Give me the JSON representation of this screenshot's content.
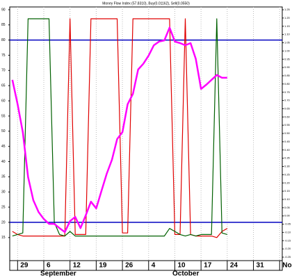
{
  "chart_data": {
    "type": "line",
    "title": "Money Flow Index (57.8310), Buy(0.01162), Sell(0.0550)",
    "categories": [
      null,
      "29",
      null,
      null,
      null,
      null,
      "6",
      null,
      null,
      null,
      null,
      "12",
      null,
      null,
      null,
      null,
      "19",
      null,
      null,
      null,
      null,
      "26",
      null,
      null,
      null,
      null,
      "4",
      null,
      null,
      null,
      null,
      "10",
      null,
      null,
      null,
      null,
      "17",
      null,
      null,
      null,
      null,
      "24",
      null,
      null,
      null,
      null,
      "31",
      null,
      null,
      null,
      null,
      "No"
    ],
    "months": [
      "September",
      "October"
    ],
    "series": [
      {
        "color": "#e00000",
        "values": [
          17,
          16,
          15.5,
          15.5,
          15.5,
          15.5,
          15.5,
          15.5,
          15.5,
          15.5,
          15.5,
          87,
          16,
          16,
          16,
          87,
          87,
          87,
          87,
          87,
          87,
          16.5,
          16.5,
          87,
          87,
          87,
          87,
          87,
          87,
          87,
          87,
          16,
          16,
          87,
          16,
          15.5,
          15.5,
          15.5,
          15.5,
          15,
          17,
          18,
          null,
          null,
          null,
          null,
          null,
          null,
          null,
          null,
          null,
          null
        ]
      },
      {
        "color": "#006000",
        "values": [
          15.5,
          16,
          16.5,
          87,
          87,
          87,
          87,
          87,
          20,
          16,
          15.5,
          17,
          15.5,
          15.5,
          15.5,
          15.5,
          15.5,
          15.5,
          15.5,
          15.5,
          15.5,
          15.5,
          15.5,
          15.5,
          15.5,
          15.5,
          15.5,
          15.5,
          15.5,
          15.5,
          18,
          17,
          16,
          15.5,
          16,
          15.5,
          16,
          16,
          16,
          87,
          16.5,
          16,
          null,
          null,
          null,
          null,
          null,
          null,
          null,
          null,
          null,
          null
        ]
      },
      {
        "color": "#ff00ff",
        "values": [
          66.9,
          58.9,
          49.7,
          34.9,
          27.3,
          23.4,
          21.1,
          19.5,
          19.5,
          18.1,
          16.8,
          20.4,
          21.8,
          18.1,
          22.3,
          26.8,
          24.6,
          30.3,
          36,
          40.6,
          47.4,
          49.7,
          58.9,
          62.3,
          70.3,
          72.2,
          74.9,
          78.3,
          79.5,
          79.9,
          84.1,
          79.5,
          79,
          78.3,
          79,
          73.8,
          63.9,
          65.3,
          66.9,
          68.5,
          67.6,
          67.6,
          null,
          null,
          null,
          null,
          null,
          null,
          null,
          null,
          null,
          null
        ]
      }
    ],
    "hlines": [
      80,
      20
    ],
    "hline_color": "#0000c0",
    "ylim": [
      7.4,
      90.9
    ],
    "yticks": [
      90,
      85,
      80,
      75,
      70,
      65,
      60,
      55,
      50,
      45,
      40,
      35,
      30,
      25,
      20,
      15
    ],
    "y2lim": [
      -0.271,
      1.267
    ],
    "y2ticks": [
      1.25,
      {
        "value": 1.2,
        "label": "1.20"
      },
      1.15,
      {
        "value": 1.1,
        "label": "1.10"
      },
      1.05,
      {
        "value": 1,
        "label": "1.00"
      },
      0.95,
      {
        "value": 0.9,
        "label": "0.90"
      },
      0.85,
      {
        "value": 0.8,
        "label": "0.80"
      },
      0.75,
      {
        "value": 0.7,
        "label": "0.70"
      },
      0.65,
      {
        "value": 0.6,
        "label": "0.60"
      },
      0.55,
      {
        "value": 0.5,
        "label": "0.50"
      },
      0.45,
      {
        "value": 0.4,
        "label": "0.40"
      },
      0.35,
      {
        "value": 0.3,
        "label": "0.30"
      },
      0.25,
      {
        "value": 0.2,
        "label": "0.20"
      },
      0.15,
      {
        "value": 0.1,
        "label": "0.10"
      },
      0.05,
      {
        "value": 0,
        "label": "0.00"
      },
      -0.05,
      {
        "value": -0.1,
        "label": "-0.10"
      },
      -0.15,
      {
        "value": -0.2,
        "label": "-0.20"
      },
      -0.25
    ],
    "grid": true
  }
}
